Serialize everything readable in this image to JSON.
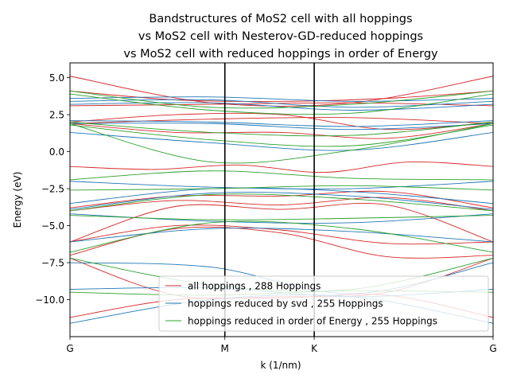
{
  "chart_data": {
    "type": "line",
    "title": [
      "Bandstructures of MoS2 cell with all hoppings",
      "vs MoS2 cell with Nesterov-GD-reduced hoppings",
      "vs MoS2 cell with reduced hoppings in order of Energy"
    ],
    "xlabel": "k (1/nm)",
    "ylabel": "Energy (eV)",
    "x_ticks": [
      {
        "label": "G",
        "k": 0
      },
      {
        "label": "M",
        "k": 1
      },
      {
        "label": "K",
        "k": 1.577
      },
      {
        "label": "G",
        "k": 2.732
      }
    ],
    "xlim": [
      0,
      2.732
    ],
    "ylim": [
      -12.5,
      6.0
    ],
    "y_ticks": [
      -10.0,
      -7.5,
      -5.0,
      -2.5,
      0.0,
      2.5,
      5.0
    ],
    "y_tick_labels": [
      "−10.0",
      "−7.5",
      "−5.0",
      "−2.5",
      "0.0",
      "2.5",
      "5.0"
    ],
    "vertical_lines_at": [
      "M",
      "K"
    ],
    "legend_position": "lower-right",
    "series": [
      {
        "name": "all hoppings , 288 Hoppings",
        "color": "#d62728",
        "bands": [
          [
            5.1,
            3.3,
            3.3,
            5.1
          ],
          [
            4.1,
            3.5,
            3.4,
            3.6,
            4.1
          ],
          [
            3.1,
            3.2,
            3.3,
            3.1
          ],
          [
            2.0,
            2.5,
            2.5,
            1.5,
            2.0
          ],
          [
            1.9,
            2.2,
            2.3,
            1.9
          ],
          [
            1.9,
            1.3,
            1.3,
            0.9,
            1.9
          ],
          [
            -1.0,
            -1.2,
            -0.9,
            -1.4,
            -0.7,
            -1.0
          ],
          [
            -3.8,
            -3.0,
            -3.0,
            -2.7,
            -3.8
          ],
          [
            -4.0,
            -3.3,
            -3.6,
            -3.1,
            -4.0
          ],
          [
            -6.1,
            -3.7,
            -3.9,
            -3.6,
            -6.1
          ],
          [
            -6.1,
            -5.0,
            -5.3,
            -6.2,
            -6.1
          ],
          [
            -7.0,
            -5.2,
            -5.5,
            -7.1,
            -7.0
          ],
          [
            -7.2,
            -9.7,
            -9.8,
            -9.5,
            -7.2
          ],
          [
            -11.2,
            -10.0,
            -9.9,
            -9.7,
            -11.2
          ]
        ]
      },
      {
        "name": "hoppings reduced by svd , 255 Hoppings",
        "color": "#1f77b4",
        "bands": [
          [
            3.6,
            3.7,
            3.4,
            3.6
          ],
          [
            3.4,
            3.5,
            3.0,
            3.4
          ],
          [
            3.2,
            3.3,
            2.8,
            3.2
          ],
          [
            2.1,
            2.0,
            1.7,
            2.1
          ],
          [
            1.9,
            1.9,
            1.5,
            1.9
          ],
          [
            1.3,
            0.6,
            0.1,
            1.3
          ],
          [
            -2.0,
            -2.4,
            -2.5,
            -2.0
          ],
          [
            -3.5,
            -2.5,
            -2.7,
            -3.5
          ],
          [
            -3.9,
            -2.8,
            -3.0,
            -3.9
          ],
          [
            -4.2,
            -4.7,
            -4.8,
            -4.2
          ],
          [
            -6.1,
            -5.2,
            -5.4,
            -6.1
          ],
          [
            -7.5,
            -7.8,
            -9.6,
            -7.5
          ],
          [
            -9.3,
            -9.2,
            -9.8,
            -9.3
          ],
          [
            -11.6,
            -10.0,
            -9.8,
            -11.6
          ]
        ]
      },
      {
        "name": "hoppings reduced in order of Energy , 255 Hoppings",
        "color": "#2ca02c",
        "bands": [
          [
            4.1,
            3.0,
            3.2,
            4.1
          ],
          [
            3.9,
            2.8,
            2.6,
            3.9
          ],
          [
            2.0,
            1.3,
            1.1,
            2.0
          ],
          [
            1.8,
            0.8,
            0.4,
            1.8
          ],
          [
            1.9,
            -0.7,
            0.1,
            1.9
          ],
          [
            -1.9,
            -1.3,
            -1.8,
            -1.9
          ],
          [
            -2.6,
            -2.5,
            -2.3,
            -2.6
          ],
          [
            -4.0,
            -2.9,
            -3.2,
            -4.0
          ],
          [
            -4.3,
            -4.6,
            -4.5,
            -4.3
          ],
          [
            -6.8,
            -4.8,
            -5.2,
            -6.8
          ],
          [
            -7.2,
            -9.0,
            -9.3,
            -7.2
          ],
          [
            -9.5,
            -9.7,
            -9.4,
            -9.5
          ]
        ]
      }
    ]
  }
}
